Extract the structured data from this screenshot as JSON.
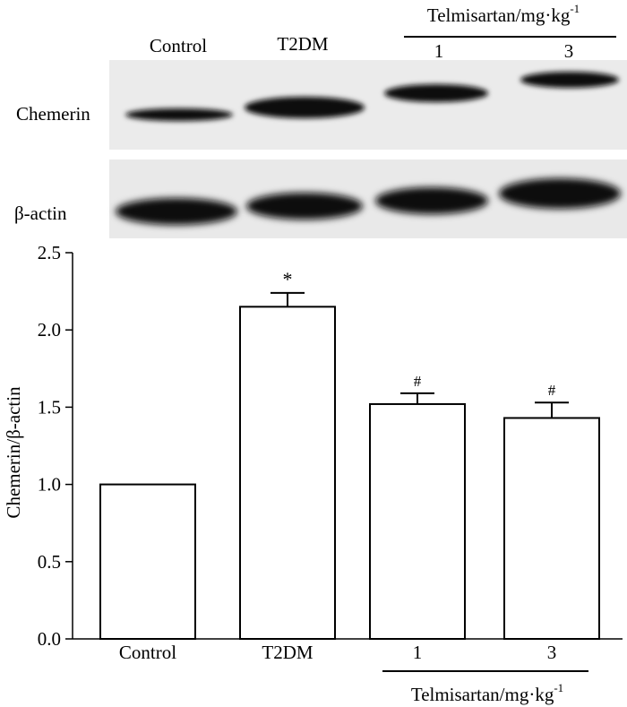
{
  "blot": {
    "lane_labels": [
      "Control",
      "T2DM",
      "1",
      "3"
    ],
    "group_label": "Telmisartan/mg·kg",
    "group_label_sup": "-1",
    "row_labels": [
      "Chemerin",
      "β-actin"
    ]
  },
  "chart_data": {
    "type": "bar",
    "categories": [
      "Control",
      "T2DM",
      "1",
      "3"
    ],
    "values": [
      1.0,
      2.15,
      1.52,
      1.43
    ],
    "errors": [
      0,
      0.09,
      0.07,
      0.1
    ],
    "annotations": [
      "",
      "*",
      "#",
      "#"
    ],
    "ylabel": "Chemerin/β-actin",
    "yticks": [
      "0.0",
      "0.5",
      "1.0",
      "1.5",
      "2.0",
      "2.5"
    ],
    "ylim": [
      0,
      2.5
    ],
    "group_label": "Telmisartan/mg·kg",
    "group_label_sup": "-1",
    "grid": false
  }
}
